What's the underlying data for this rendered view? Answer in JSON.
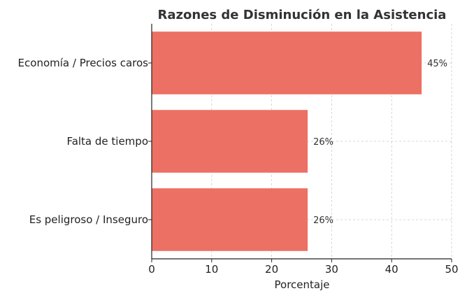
{
  "chart_data": {
    "type": "bar",
    "orientation": "horizontal",
    "title": "Razones de Disminución en la Asistencia",
    "xlabel": "Porcentaje",
    "ylabel": "",
    "categories": [
      "Economía / Precios caros",
      "Falta de tiempo",
      "Es peligroso / Inseguro"
    ],
    "values": [
      45,
      26,
      26
    ],
    "data_labels": [
      "45%",
      "26%",
      "26%"
    ],
    "xlim": [
      0,
      50
    ],
    "xticks": [
      0,
      10,
      20,
      30,
      40,
      50
    ],
    "xtick_labels": [
      "0",
      "10",
      "20",
      "30",
      "40",
      "50"
    ],
    "grid": true,
    "bar_color": "#ec7063"
  }
}
